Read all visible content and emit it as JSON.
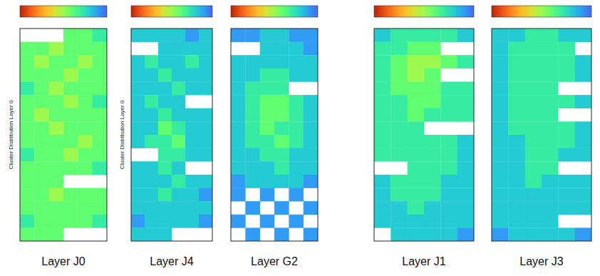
{
  "chart_data": [
    {
      "type": "heatmap",
      "title": "Layer J0",
      "ylabel": "Cluster Distribution Layer 0",
      "tick_labels": false,
      "colorbar": {
        "range": [
          0,
          10
        ]
      },
      "cells": [
        [
          null,
          null,
          null,
          4,
          4,
          3
        ],
        [
          4,
          4,
          5,
          4,
          4,
          4
        ],
        [
          4,
          5,
          4,
          4,
          5,
          4
        ],
        [
          4,
          4,
          4,
          5,
          4,
          4
        ],
        [
          3,
          4,
          5,
          4,
          4,
          4
        ],
        [
          4,
          4,
          4,
          5,
          4,
          3
        ],
        [
          4,
          5,
          4,
          4,
          4,
          4
        ],
        [
          4,
          4,
          5,
          4,
          4,
          4
        ],
        [
          4,
          4,
          4,
          4,
          5,
          4
        ],
        [
          3,
          4,
          4,
          5,
          4,
          4
        ],
        [
          4,
          4,
          4,
          4,
          4,
          3
        ],
        [
          4,
          4,
          4,
          null,
          null,
          null
        ],
        [
          4,
          4,
          5,
          4,
          4,
          4
        ],
        [
          4,
          4,
          4,
          4,
          4,
          4
        ],
        [
          3,
          4,
          4,
          4,
          4,
          3
        ],
        [
          4,
          4,
          4,
          null,
          null,
          null
        ]
      ]
    },
    {
      "type": "heatmap",
      "title": "Layer J4",
      "ylabel": "Cluster Distribution Layer 0",
      "tick_labels": false,
      "colorbar": {
        "range": [
          0,
          10
        ]
      },
      "cells": [
        [
          2,
          2,
          2,
          2,
          1,
          2
        ],
        [
          null,
          null,
          2,
          2,
          2,
          2
        ],
        [
          2,
          3,
          2,
          2,
          3,
          2
        ],
        [
          2,
          2,
          3,
          2,
          2,
          2
        ],
        [
          2,
          2,
          2,
          3,
          2,
          2
        ],
        [
          2,
          3,
          2,
          2,
          null,
          null
        ],
        [
          2,
          2,
          3,
          2,
          2,
          2
        ],
        [
          2,
          2,
          4,
          3,
          2,
          2
        ],
        [
          2,
          3,
          3,
          4,
          2,
          2
        ],
        [
          null,
          null,
          3,
          3,
          2,
          2
        ],
        [
          2,
          2,
          3,
          2,
          null,
          null
        ],
        [
          2,
          2,
          2,
          3,
          2,
          2
        ],
        [
          2,
          2,
          3,
          2,
          2,
          1
        ],
        [
          2,
          2,
          2,
          2,
          2,
          2
        ],
        [
          1,
          2,
          2,
          2,
          2,
          1
        ],
        [
          2,
          2,
          2,
          null,
          null,
          null
        ]
      ]
    },
    {
      "type": "heatmap",
      "title": "Layer G2",
      "tick_labels": false,
      "colorbar": {
        "range": [
          0,
          10
        ]
      },
      "cells": [
        [
          1,
          1,
          2,
          2,
          1,
          1
        ],
        [
          null,
          null,
          2,
          2,
          2,
          1
        ],
        [
          2,
          2,
          2,
          2,
          2,
          2
        ],
        [
          2,
          2,
          3,
          3,
          2,
          2
        ],
        [
          2,
          3,
          3,
          3,
          null,
          null
        ],
        [
          2,
          3,
          4,
          4,
          3,
          2
        ],
        [
          2,
          3,
          4,
          4,
          3,
          2
        ],
        [
          2,
          3,
          4,
          3,
          3,
          2
        ],
        [
          2,
          3,
          3,
          4,
          3,
          2
        ],
        [
          2,
          2,
          3,
          3,
          2,
          2
        ],
        [
          2,
          2,
          2,
          3,
          2,
          2
        ],
        [
          1,
          2,
          2,
          2,
          2,
          1
        ],
        [
          1,
          null,
          1,
          null,
          1,
          null
        ],
        [
          null,
          1,
          null,
          1,
          null,
          1
        ],
        [
          1,
          null,
          1,
          null,
          1,
          null
        ],
        [
          null,
          1,
          null,
          1,
          null,
          1
        ]
      ]
    },
    {
      "type": "heatmap",
      "title": "Layer J1",
      "tick_labels": false,
      "colorbar": {
        "range": [
          0,
          10
        ]
      },
      "cells": [
        [
          2,
          3,
          3,
          3,
          3,
          2
        ],
        [
          3,
          3,
          4,
          4,
          null,
          null
        ],
        [
          3,
          4,
          5,
          5,
          4,
          3
        ],
        [
          3,
          4,
          5,
          4,
          null,
          null
        ],
        [
          3,
          4,
          4,
          4,
          3,
          3
        ],
        [
          3,
          3,
          4,
          4,
          3,
          3
        ],
        [
          3,
          3,
          4,
          3,
          3,
          3
        ],
        [
          3,
          3,
          3,
          null,
          null,
          null
        ],
        [
          3,
          3,
          3,
          3,
          3,
          2
        ],
        [
          3,
          3,
          3,
          3,
          3,
          2
        ],
        [
          null,
          null,
          3,
          3,
          3,
          2
        ],
        [
          2,
          3,
          3,
          3,
          2,
          2
        ],
        [
          2,
          3,
          3,
          3,
          2,
          2
        ],
        [
          2,
          2,
          3,
          2,
          2,
          2
        ],
        [
          2,
          2,
          2,
          2,
          2,
          2
        ],
        [
          null,
          2,
          2,
          2,
          2,
          1
        ]
      ]
    },
    {
      "type": "heatmap",
      "title": "Layer J3",
      "tick_labels": false,
      "colorbar": {
        "range": [
          0,
          10
        ]
      },
      "cells": [
        [
          2,
          2,
          3,
          3,
          2,
          2
        ],
        [
          2,
          3,
          3,
          3,
          3,
          null
        ],
        [
          2,
          3,
          3,
          3,
          3,
          2
        ],
        [
          2,
          3,
          3,
          3,
          3,
          2
        ],
        [
          2,
          3,
          3,
          3,
          null,
          null
        ],
        [
          2,
          3,
          3,
          3,
          3,
          2
        ],
        [
          2,
          3,
          3,
          3,
          null,
          null
        ],
        [
          2,
          3,
          3,
          3,
          3,
          2
        ],
        [
          2,
          2,
          3,
          3,
          3,
          2
        ],
        [
          2,
          2,
          3,
          3,
          2,
          2
        ],
        [
          2,
          2,
          3,
          3,
          null,
          null
        ],
        [
          2,
          2,
          3,
          2,
          2,
          2
        ],
        [
          2,
          2,
          2,
          2,
          2,
          2
        ],
        [
          2,
          2,
          2,
          2,
          2,
          2
        ],
        [
          2,
          2,
          2,
          2,
          null,
          null
        ],
        [
          1,
          2,
          2,
          2,
          2,
          1
        ]
      ]
    }
  ]
}
